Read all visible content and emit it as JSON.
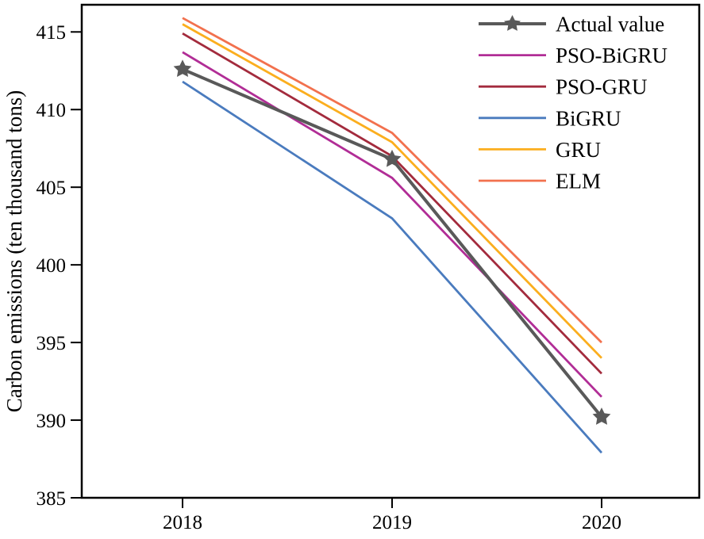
{
  "figure": {
    "background": "#ffffff",
    "frame_color": "#000000"
  },
  "chart_data": {
    "type": "line",
    "title": "",
    "xlabel": "",
    "ylabel": "Carbon emissions (ten thousand tons)",
    "x": [
      "2018",
      "2019",
      "2020"
    ],
    "ylim": [
      385,
      416.75
    ],
    "yticks": [
      385,
      390,
      395,
      400,
      405,
      410,
      415
    ],
    "grid": false,
    "legend_position": "upper-right",
    "series": [
      {
        "name": "Actual value",
        "color": "#595959",
        "marker": "star",
        "linewidth": 4,
        "values": [
          412.6,
          406.8,
          390.2
        ]
      },
      {
        "name": "PSO-BiGRU",
        "color": "#B12D96",
        "marker": "none",
        "linewidth": 2.8,
        "values": [
          413.7,
          405.6,
          391.5
        ]
      },
      {
        "name": "PSO-GRU",
        "color": "#A32B3D",
        "marker": "none",
        "linewidth": 2.8,
        "values": [
          414.9,
          407.0,
          393.0
        ]
      },
      {
        "name": "BiGRU",
        "color": "#4A7BBE",
        "marker": "none",
        "linewidth": 2.8,
        "values": [
          411.8,
          403.0,
          387.9
        ]
      },
      {
        "name": "GRU",
        "color": "#FBAE1E",
        "marker": "none",
        "linewidth": 2.8,
        "values": [
          415.5,
          407.9,
          394.0
        ]
      },
      {
        "name": "ELM",
        "color": "#F2714E",
        "marker": "none",
        "linewidth": 2.8,
        "values": [
          415.9,
          408.5,
          395.0
        ]
      }
    ]
  }
}
